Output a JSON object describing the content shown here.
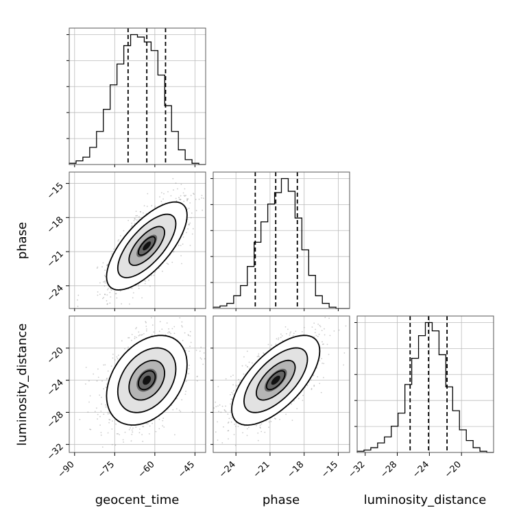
{
  "chart_data": {
    "type": "corner",
    "parameters": [
      "geocent_time",
      "phase",
      "luminosity_distance"
    ],
    "means": [
      -63,
      -20.5,
      -24
    ],
    "stds": [
      7,
      1.8,
      2.6
    ],
    "correlations": {
      "geocent_time|phase": 0.7,
      "geocent_time|luminosity_distance": 0.35,
      "phase|luminosity_distance": 0.65
    },
    "quantiles": {
      "geocent_time": [
        -70,
        -63,
        -56
      ],
      "phase": [
        -22.3,
        -20.5,
        -18.6
      ],
      "luminosity_distance": [
        -26.4,
        -24.1,
        -21.8
      ]
    },
    "ranges": {
      "geocent_time": [
        -92,
        -41
      ],
      "phase": [
        -26,
        -14
      ],
      "luminosity_distance": [
        -33,
        -16
      ]
    },
    "ticks": {
      "geocent_time": [
        -90,
        -75,
        -60,
        -45
      ],
      "phase_x": [
        -24,
        -21,
        -18,
        -15
      ],
      "phase_y": [
        -15,
        -18,
        -21,
        -24
      ],
      "luminosity_distance_x": [
        -32,
        -28,
        -24,
        -20
      ],
      "luminosity_distance_y": [
        -20,
        -24,
        -28,
        -32
      ]
    },
    "histograms": {
      "geocent_time": {
        "range": [
          -92,
          -41
        ],
        "counts": [
          1,
          3,
          6,
          14,
          27,
          45,
          65,
          82,
          97,
          106,
          104,
          100,
          93,
          73,
          48,
          27,
          12,
          4,
          1,
          0
        ]
      },
      "phase": {
        "range": [
          -26,
          -14
        ],
        "counts": [
          1,
          2,
          4,
          10,
          18,
          33,
          52,
          68,
          82,
          91,
          102,
          92,
          71,
          46,
          26,
          10,
          4,
          1,
          0,
          0
        ]
      },
      "luminosity_distance": {
        "range": [
          -33,
          -16
        ],
        "counts": [
          1,
          2,
          4,
          8,
          13,
          22,
          33,
          57,
          79,
          98,
          109,
          102,
          82,
          55,
          35,
          19,
          10,
          4,
          1,
          0
        ]
      }
    },
    "labels": {
      "x": [
        "geocent_time",
        "phase",
        "luminosity_distance"
      ],
      "y": [
        "phase",
        "luminosity_distance"
      ]
    },
    "grid": true
  }
}
